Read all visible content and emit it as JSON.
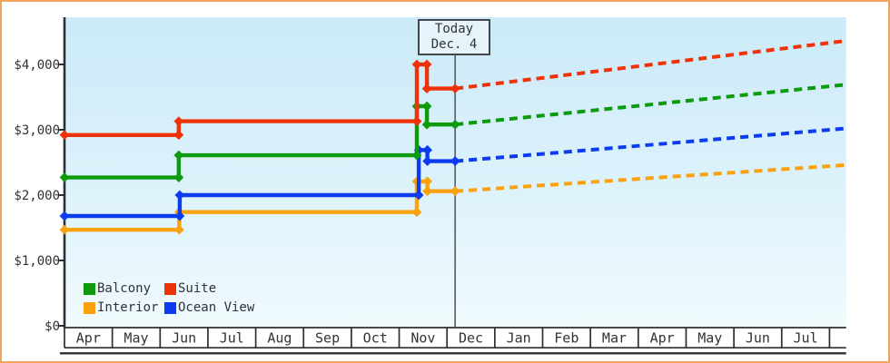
{
  "chart_data": {
    "type": "line",
    "subtype": "stepped price history with dashed future projection",
    "title": "",
    "y_axis": {
      "tick_labels": [
        "$0",
        "$1,000",
        "$2,000",
        "$3,000",
        "$4,000"
      ],
      "tick_values": [
        0,
        1000,
        2000,
        3000,
        4000
      ],
      "visible_max": 4720
    },
    "x_axis": {
      "month_labels": [
        "Apr",
        "May",
        "Jun",
        "Jul",
        "Aug",
        "Sep",
        "Oct",
        "Nov",
        "Dec",
        "Jan",
        "Feb",
        "Mar",
        "Apr",
        "May",
        "Jun",
        "Jul"
      ]
    },
    "today": {
      "line1": "Today",
      "line2": "Dec. 4",
      "month_position": 8.17
    },
    "series": [
      {
        "name": "Suite",
        "color": "#ee3309",
        "history_usd": [
          [
            0,
            2920
          ],
          [
            2.39,
            2920
          ],
          [
            2.39,
            3130
          ],
          [
            7.37,
            3130
          ],
          [
            7.37,
            4000
          ],
          [
            7.58,
            4000
          ],
          [
            7.58,
            3630
          ],
          [
            8.17,
            3630
          ]
        ],
        "projection_usd": [
          [
            8.17,
            3630
          ],
          [
            16.33,
            4360
          ]
        ]
      },
      {
        "name": "Balcony",
        "color": "#0d9b0d",
        "history_usd": [
          [
            0,
            2270
          ],
          [
            2.39,
            2270
          ],
          [
            2.39,
            2610
          ],
          [
            7.37,
            2610
          ],
          [
            7.37,
            3360
          ],
          [
            7.58,
            3360
          ],
          [
            7.58,
            3080
          ],
          [
            8.17,
            3080
          ]
        ],
        "projection_usd": [
          [
            8.17,
            3080
          ],
          [
            16.33,
            3690
          ]
        ]
      },
      {
        "name": "Ocean View",
        "color": "#0d3cf0",
        "history_usd": [
          [
            0,
            1680
          ],
          [
            2.41,
            1680
          ],
          [
            2.41,
            2000
          ],
          [
            7.41,
            2000
          ],
          [
            7.41,
            2690
          ],
          [
            7.59,
            2690
          ],
          [
            7.59,
            2520
          ],
          [
            8.17,
            2520
          ]
        ],
        "projection_usd": [
          [
            8.17,
            2520
          ],
          [
            16.33,
            3020
          ]
        ]
      },
      {
        "name": "Interior",
        "color": "#f9a20d",
        "history_usd": [
          [
            0,
            1470
          ],
          [
            2.4,
            1470
          ],
          [
            2.4,
            1740
          ],
          [
            7.37,
            1740
          ],
          [
            7.37,
            2210
          ],
          [
            7.59,
            2210
          ],
          [
            7.59,
            2060
          ],
          [
            8.17,
            2060
          ]
        ],
        "projection_usd": [
          [
            8.17,
            2060
          ],
          [
            16.33,
            2460
          ]
        ]
      }
    ],
    "legend": [
      {
        "label": "Balcony",
        "color": "#0d9b0d"
      },
      {
        "label": "Suite",
        "color": "#ee3309"
      },
      {
        "label": "Interior",
        "color": "#f9a20d"
      },
      {
        "label": "Ocean View",
        "color": "#0d3cf0"
      }
    ],
    "colors": {
      "plot_bg_top": "#cbeaf8",
      "plot_bg_bottom": "#f0fafd",
      "axis": "#2c3034",
      "text": "#2f3337",
      "today_line": "#565b60",
      "frame_border": "#efa65a"
    }
  }
}
